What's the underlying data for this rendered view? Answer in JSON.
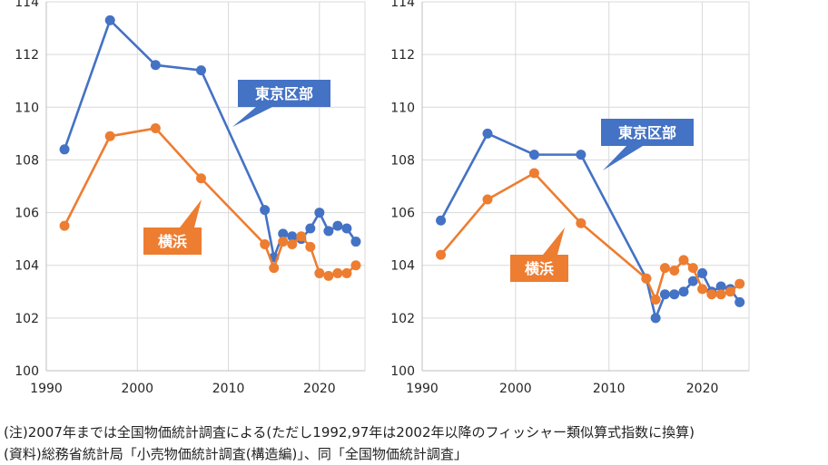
{
  "chart_data": [
    {
      "type": "line",
      "x_ticks": [
        1990,
        2000,
        2010,
        2020
      ],
      "y_ticks": [
        100,
        102,
        104,
        106,
        108,
        110,
        112,
        114
      ],
      "xlim": [
        1990,
        2025
      ],
      "ylim": [
        100,
        114
      ],
      "grid": true,
      "series": [
        {
          "name": "東京区部",
          "color": "#4472C4",
          "points": [
            [
              1992,
              108.4
            ],
            [
              1997,
              113.3
            ],
            [
              2002,
              111.6
            ],
            [
              2007,
              111.4
            ],
            [
              2014,
              106.1
            ],
            [
              2015,
              104.3
            ],
            [
              2016,
              105.2
            ],
            [
              2017,
              105.1
            ],
            [
              2018,
              105.0
            ],
            [
              2019,
              105.4
            ],
            [
              2020,
              106.0
            ],
            [
              2021,
              105.3
            ],
            [
              2022,
              105.5
            ],
            [
              2023,
              105.4
            ],
            [
              2024,
              104.9
            ]
          ]
        },
        {
          "name": "横浜",
          "color": "#ED7D31",
          "points": [
            [
              1992,
              105.5
            ],
            [
              1997,
              108.9
            ],
            [
              2002,
              109.2
            ],
            [
              2007,
              107.3
            ],
            [
              2014,
              104.8
            ],
            [
              2015,
              103.9
            ],
            [
              2016,
              104.9
            ],
            [
              2017,
              104.8
            ],
            [
              2018,
              105.1
            ],
            [
              2019,
              104.7
            ],
            [
              2020,
              103.7
            ],
            [
              2021,
              103.6
            ],
            [
              2022,
              103.7
            ],
            [
              2023,
              103.7
            ],
            [
              2024,
              104.0
            ]
          ]
        }
      ]
    },
    {
      "type": "line",
      "x_ticks": [
        1990,
        2000,
        2010,
        2020
      ],
      "y_ticks": [
        100,
        102,
        104,
        106,
        108,
        110,
        112,
        114
      ],
      "xlim": [
        1990,
        2025
      ],
      "ylim": [
        100,
        114
      ],
      "grid": true,
      "series": [
        {
          "name": "東京区部",
          "color": "#4472C4",
          "points": [
            [
              1992,
              105.7
            ],
            [
              1997,
              109.0
            ],
            [
              2002,
              108.2
            ],
            [
              2007,
              108.2
            ],
            [
              2014,
              103.5
            ],
            [
              2015,
              102.0
            ],
            [
              2016,
              102.9
            ],
            [
              2017,
              102.9
            ],
            [
              2018,
              103.0
            ],
            [
              2019,
              103.4
            ],
            [
              2020,
              103.7
            ],
            [
              2021,
              103.0
            ],
            [
              2022,
              103.2
            ],
            [
              2023,
              103.1
            ],
            [
              2024,
              102.6
            ]
          ]
        },
        {
          "name": "横浜",
          "color": "#ED7D31",
          "points": [
            [
              1992,
              104.4
            ],
            [
              1997,
              106.5
            ],
            [
              2002,
              107.5
            ],
            [
              2007,
              105.6
            ],
            [
              2014,
              103.5
            ],
            [
              2015,
              102.7
            ],
            [
              2016,
              103.9
            ],
            [
              2017,
              103.8
            ],
            [
              2018,
              104.2
            ],
            [
              2019,
              103.9
            ],
            [
              2020,
              103.1
            ],
            [
              2021,
              102.9
            ],
            [
              2022,
              102.9
            ],
            [
              2023,
              103.0
            ],
            [
              2024,
              103.3
            ]
          ]
        }
      ]
    }
  ],
  "notes": {
    "line1": "(注)2007年までは全国物価統計調査による(ただし1992,97年は2002年以降のフィッシャー類似算式指数に換算)",
    "line2": "(資料)総務省統計局「小売物価統計調査(構造編)」、同「全国物価統計調査」"
  }
}
